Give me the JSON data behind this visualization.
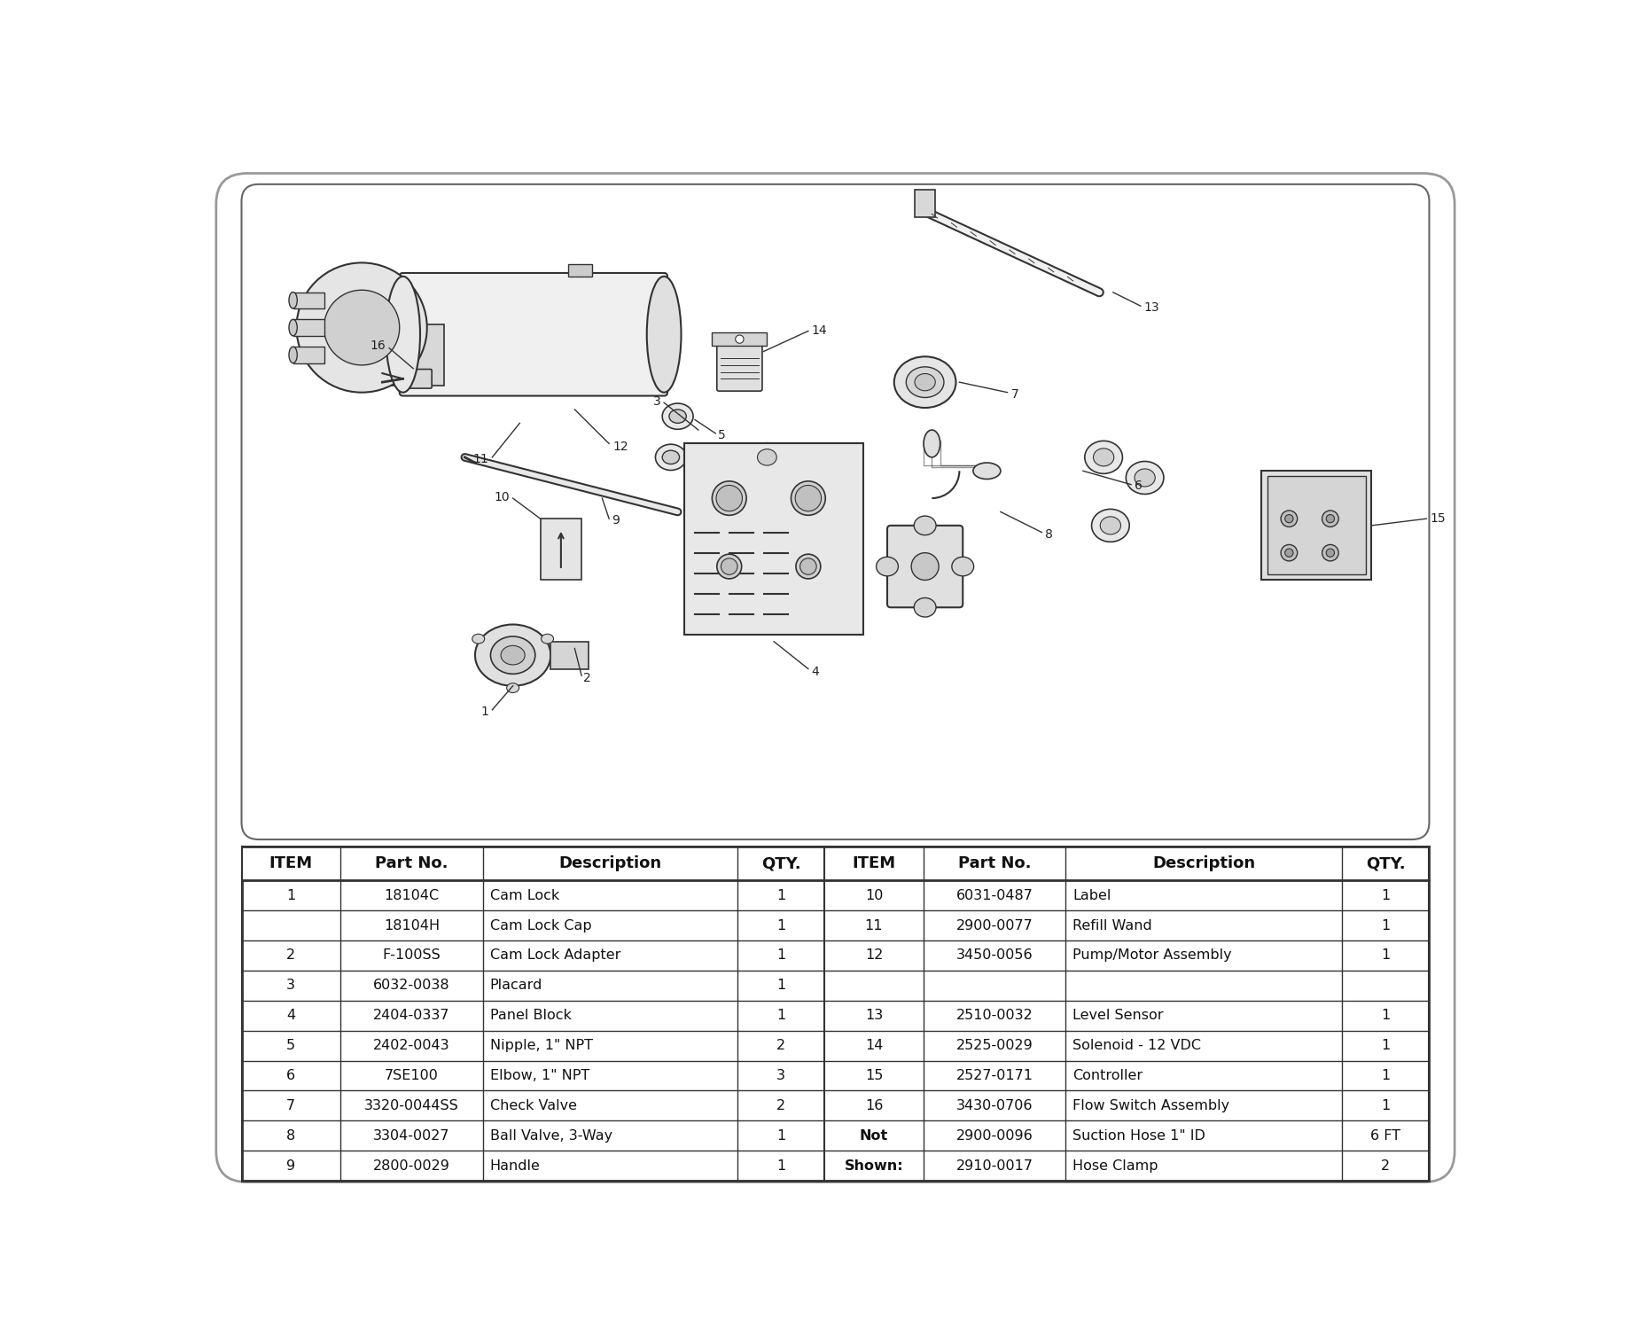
{
  "background_color": "#ffffff",
  "table_headers": [
    "ITEM",
    "Part No.",
    "Description",
    "QTY.",
    "ITEM",
    "Part No.",
    "Description",
    "QTY."
  ],
  "table_rows": [
    [
      "1",
      "18104C",
      "Cam Lock",
      "1",
      "10",
      "6031-0487",
      "Label",
      "1"
    ],
    [
      "",
      "18104H",
      "Cam Lock Cap",
      "1",
      "11",
      "2900-0077",
      "Refill Wand",
      "1"
    ],
    [
      "2",
      "F-100SS",
      "Cam Lock Adapter",
      "1",
      "12",
      "3450-0056",
      "Pump/Motor Assembly",
      "1"
    ],
    [
      "3",
      "6032-0038",
      "Placard",
      "1",
      "",
      "",
      "",
      ""
    ],
    [
      "4",
      "2404-0337",
      "Panel Block",
      "1",
      "13",
      "2510-0032",
      "Level Sensor",
      "1"
    ],
    [
      "5",
      "2402-0043",
      "Nipple, 1\" NPT",
      "2",
      "14",
      "2525-0029",
      "Solenoid - 12 VDC",
      "1"
    ],
    [
      "6",
      "7SE100",
      "Elbow, 1\" NPT",
      "3",
      "15",
      "2527-0171",
      "Controller",
      "1"
    ],
    [
      "7",
      "3320-0044SS",
      "Check Valve",
      "2",
      "16",
      "3430-0706",
      "Flow Switch Assembly",
      "1"
    ],
    [
      "8",
      "3304-0027",
      "Ball Valve, 3-Way",
      "1",
      "Not",
      "2900-0096",
      "Suction Hose 1\" ID",
      "6 FT"
    ],
    [
      "9",
      "2800-0029",
      "Handle",
      "1",
      "Shown:",
      "2910-0017",
      "Hose Clamp",
      "2"
    ]
  ],
  "bold_col4_vals": [
    "Not",
    "Shown:"
  ],
  "font_size_header": 13,
  "font_size_row": 11.5,
  "col_props": [
    0.068,
    0.098,
    0.175,
    0.06,
    0.068,
    0.098,
    0.19,
    0.06
  ],
  "line_color": "#333333",
  "outer_box_color": "#999999"
}
